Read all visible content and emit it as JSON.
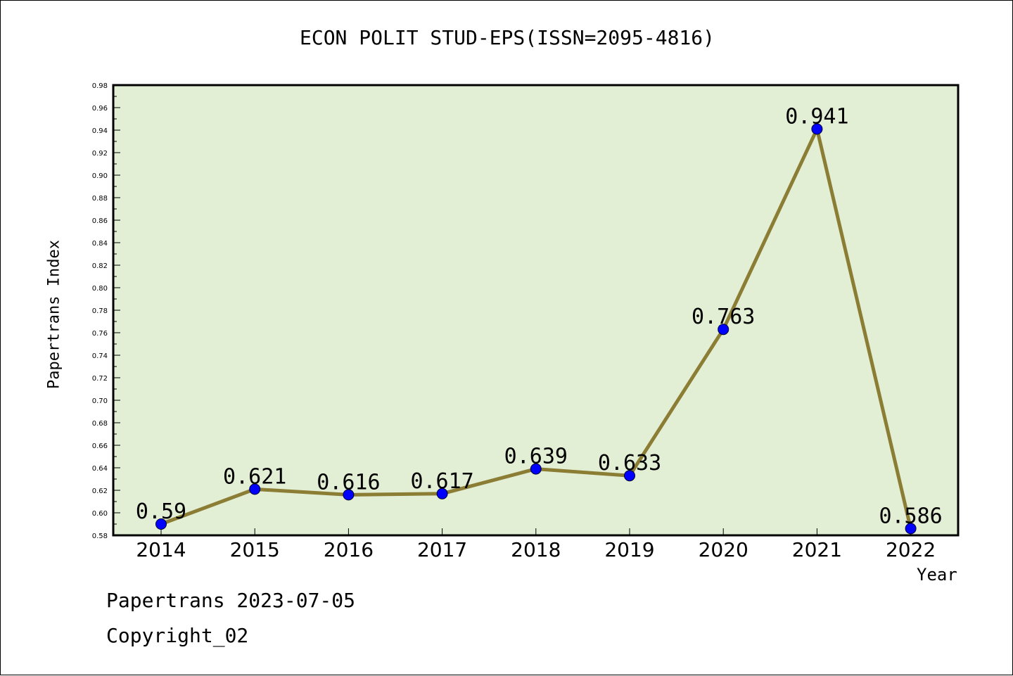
{
  "colors": {
    "plot_background": "#e2efd5",
    "line": "#8b7d34",
    "marker": "#0000ff",
    "axis": "#000000"
  },
  "footer": {
    "date_text": "Papertrans 2023-07-05",
    "copyright_text": "Copyright_02"
  },
  "chart_data": {
    "type": "line",
    "title": "ECON POLIT STUD-EPS(ISSN=2095-4816)",
    "xlabel": "Year",
    "ylabel": "Papertrans Index",
    "categories": [
      "2014",
      "2015",
      "2016",
      "2017",
      "2018",
      "2019",
      "2020",
      "2021",
      "2022"
    ],
    "series": [
      {
        "values": [
          0.59,
          0.621,
          0.616,
          0.617,
          0.639,
          0.633,
          0.763,
          0.941,
          0.586
        ],
        "data_labels": [
          "0.59",
          "0.621",
          "0.616",
          "0.617",
          "0.639",
          "0.633",
          "0.763",
          "0.941",
          "0.586"
        ]
      }
    ],
    "ylim": [
      0.58,
      0.98
    ],
    "yticks": [
      "0.58",
      "0.60",
      "0.62",
      "0.64",
      "0.66",
      "0.68",
      "0.70",
      "0.72",
      "0.74",
      "0.76",
      "0.78",
      "0.80",
      "0.82",
      "0.84",
      "0.86",
      "0.88",
      "0.90",
      "0.92",
      "0.94",
      "0.96",
      "0.98"
    ],
    "grid": false,
    "legend": "none"
  }
}
